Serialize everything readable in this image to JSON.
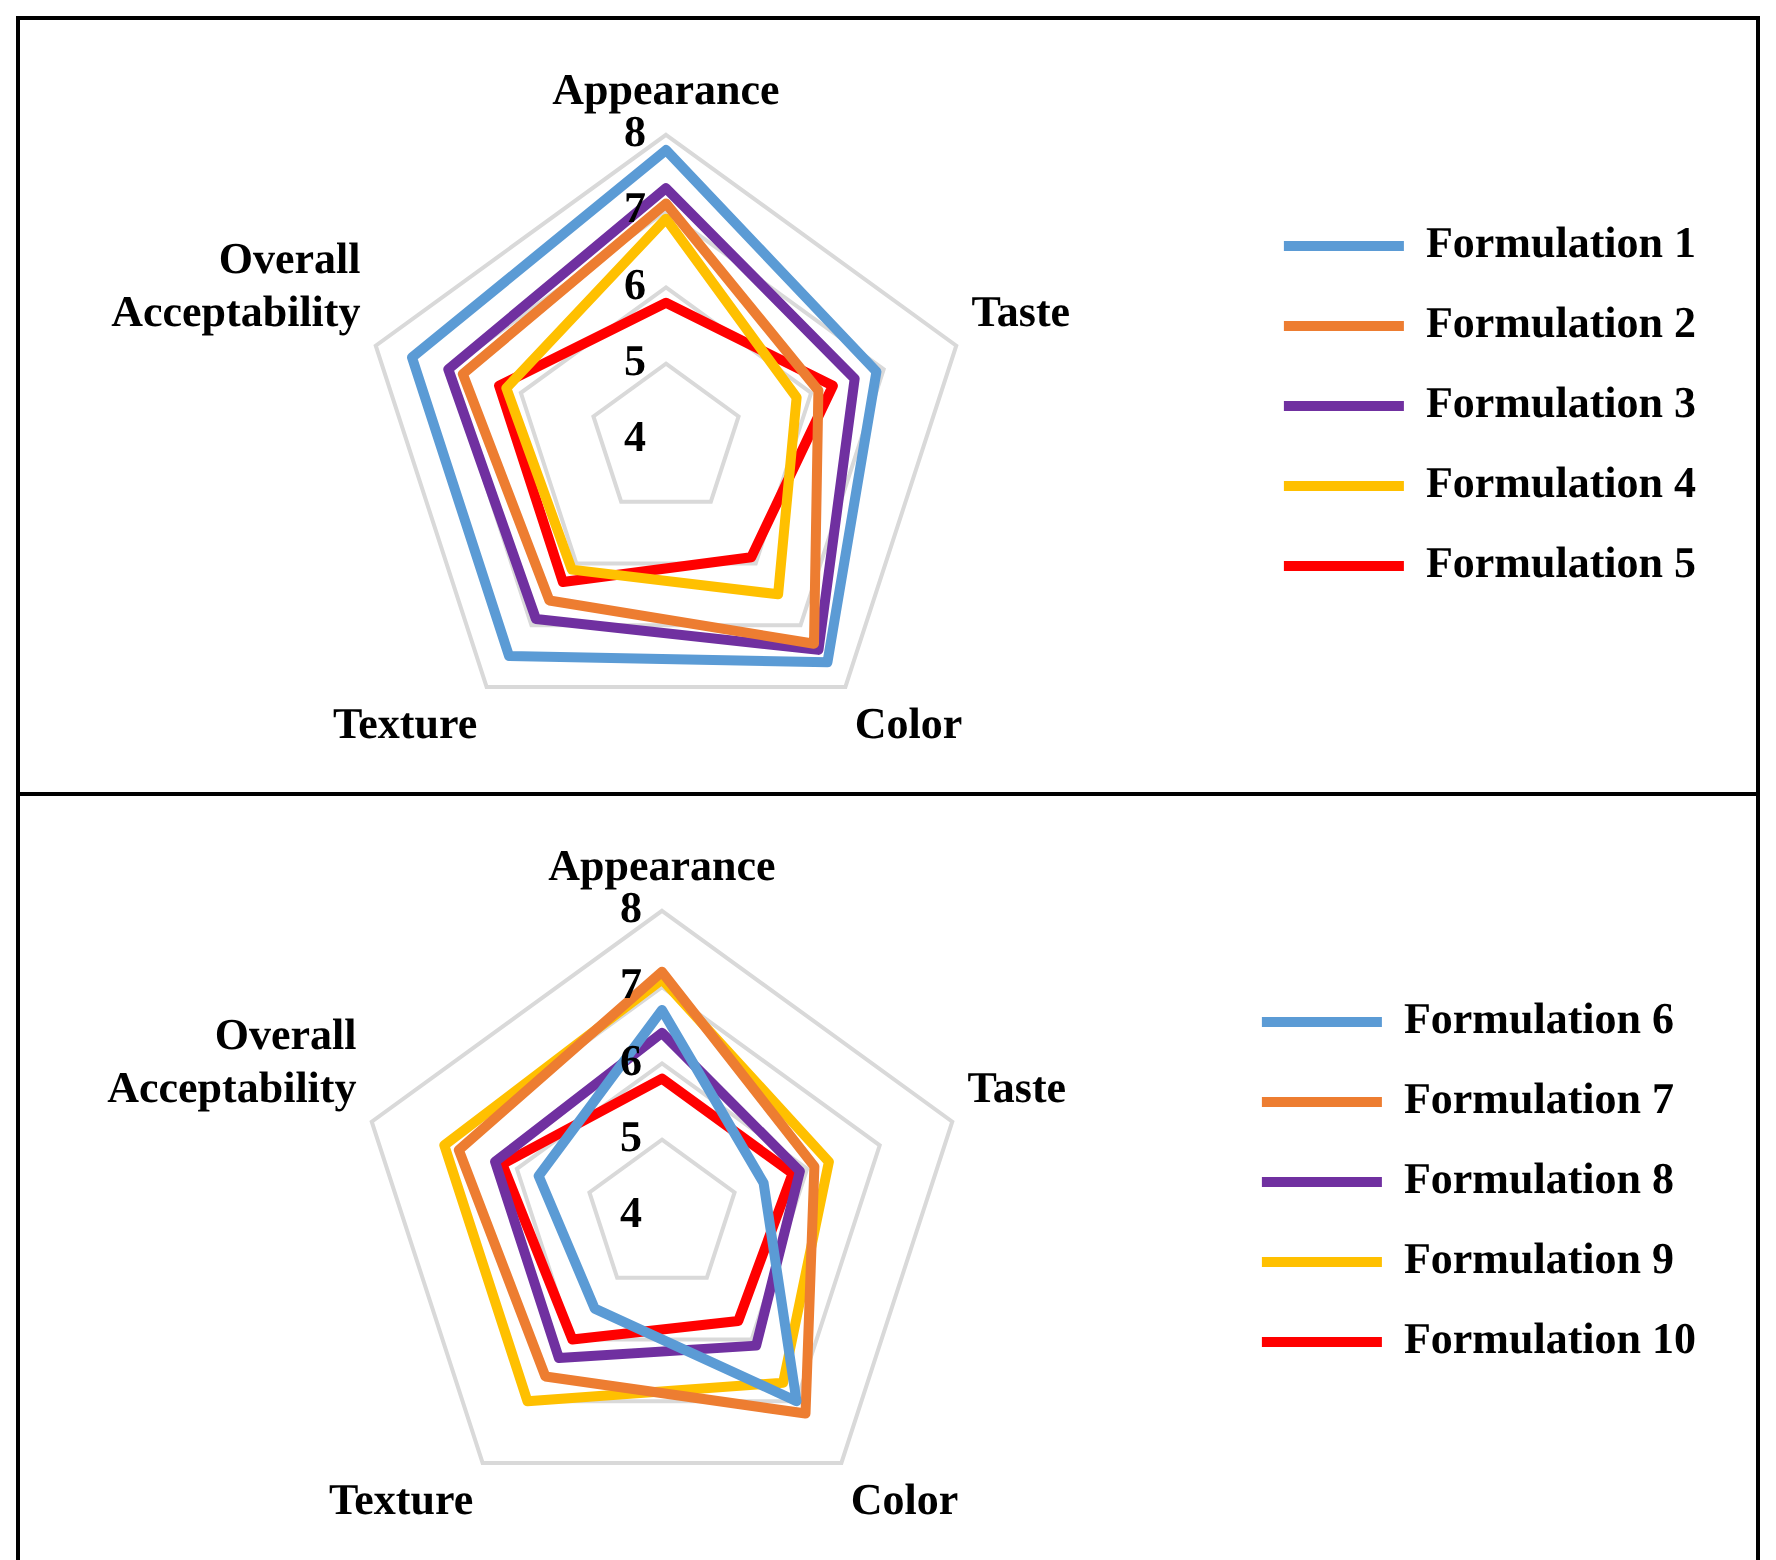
{
  "chart_data": [
    {
      "type": "radar",
      "categories": [
        "Appearance",
        "Taste",
        "Color",
        "Texture",
        "Overall Acceptability"
      ],
      "ylim": [
        4,
        8
      ],
      "yticks": [
        4,
        5,
        6,
        7,
        8
      ],
      "grid": true,
      "legend": "right",
      "marker": "none",
      "series": [
        {
          "name": "Formulation 1",
          "color": "#5b9bd5",
          "values": [
            7.8,
            6.9,
            7.6,
            7.5,
            7.5
          ]
        },
        {
          "name": "Formulation 2",
          "color": "#ed7d31",
          "values": [
            7.1,
            6.1,
            7.3,
            6.6,
            6.8
          ]
        },
        {
          "name": "Formulation 3",
          "color": "#7030a0",
          "values": [
            7.3,
            6.6,
            7.4,
            6.9,
            7.0
          ]
        },
        {
          "name": "Formulation 4",
          "color": "#ffc000",
          "values": [
            6.9,
            5.8,
            6.5,
            6.1,
            6.2
          ]
        },
        {
          "name": "Formulation 5",
          "color": "#ff0000",
          "values": [
            5.8,
            6.3,
            5.9,
            6.3,
            6.3
          ]
        }
      ]
    },
    {
      "type": "radar",
      "categories": [
        "Appearance",
        "Taste",
        "Color",
        "Texture",
        "Overall Acceptability"
      ],
      "ylim": [
        4,
        8
      ],
      "yticks": [
        4,
        5,
        6,
        7,
        8
      ],
      "grid": true,
      "legend": "right",
      "marker": "none",
      "series": [
        {
          "name": "Formulation 6",
          "color": "#5b9bd5",
          "values": [
            6.7,
            5.4,
            7.0,
            5.5,
            5.7
          ]
        },
        {
          "name": "Formulation 7",
          "color": "#ed7d31",
          "values": [
            7.2,
            6.1,
            7.2,
            6.6,
            6.8
          ]
        },
        {
          "name": "Formulation 8",
          "color": "#7030a0",
          "values": [
            6.4,
            5.9,
            6.1,
            6.3,
            6.3
          ]
        },
        {
          "name": "Formulation 9",
          "color": "#ffc000",
          "values": [
            7.1,
            6.3,
            6.7,
            7.0,
            7.0
          ]
        },
        {
          "name": "Formulation 10",
          "color": "#ff0000",
          "values": [
            5.8,
            5.8,
            5.7,
            6.0,
            6.2
          ]
        }
      ]
    }
  ]
}
